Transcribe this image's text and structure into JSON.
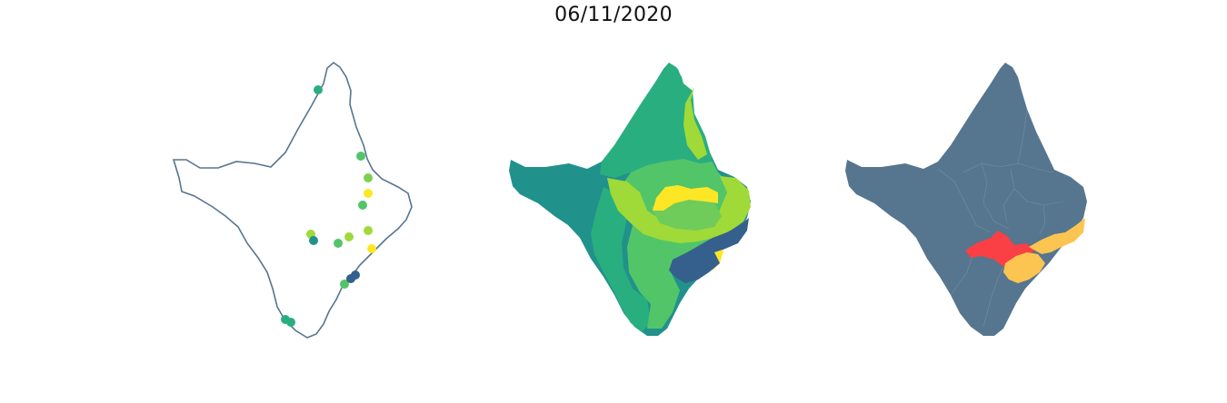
{
  "figure": {
    "title": "06/11/2020"
  },
  "colors": {
    "outline": "#56758f",
    "teal": "#21918c",
    "green_teal": "#29ae80",
    "green": "#52c569",
    "lime": "#a0da39",
    "yellow": "#fde725",
    "navy": "#355f8d",
    "slate": "#56758f",
    "red": "#fa3f45",
    "gold": "#fcc451"
  },
  "panels": [
    {
      "kind": "point-map",
      "points_color_scale": "viridis"
    },
    {
      "kind": "choropleth",
      "color_scale": "viridis"
    },
    {
      "kind": "highlight-choropleth",
      "base": "slate",
      "highlights": [
        "red",
        "gold"
      ]
    }
  ]
}
